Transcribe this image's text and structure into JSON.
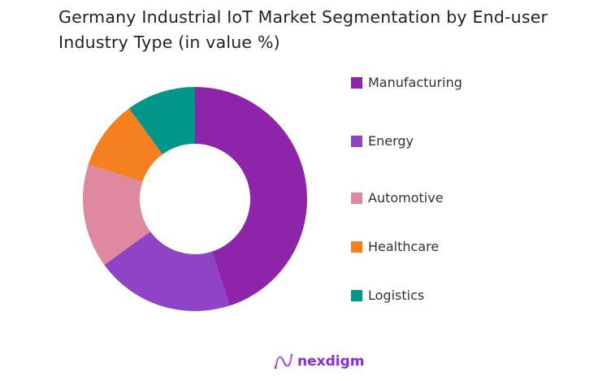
{
  "chart_data": {
    "type": "pie",
    "donut": true,
    "title": "Germany Industrial IoT Market Segmentation by End-user Industry Type (in value %)",
    "categories": [
      "Manufacturing",
      "Energy",
      "Automotive",
      "Healthcare",
      "Logistics"
    ],
    "values": [
      45,
      20,
      15,
      10,
      10
    ],
    "colors": [
      "#8e24aa",
      "#8e44c4",
      "#e088a0",
      "#f5801f",
      "#00968a"
    ],
    "legend_position": "right"
  },
  "logo": {
    "text": "nexdigm"
  }
}
